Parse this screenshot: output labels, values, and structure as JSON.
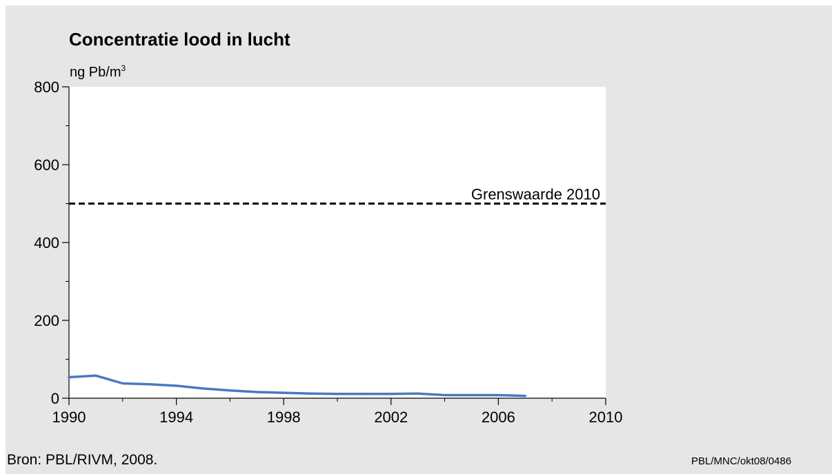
{
  "colors": {
    "panel_bg": "#e6e6e6",
    "plot_bg": "#ffffff",
    "series": "#4a78c4",
    "reference_line": "#000000"
  },
  "chart_data": {
    "type": "line",
    "title": "Concentratie lood in lucht",
    "ylabel": "ng Pb/m",
    "ylabel_superscript": "3",
    "xlabel": "",
    "xlim": [
      1990,
      2010
    ],
    "ylim": [
      0,
      800
    ],
    "x_ticks": [
      "1990",
      "1994",
      "1998",
      "2002",
      "2006",
      "2010"
    ],
    "y_ticks": [
      "0",
      "200",
      "400",
      "600",
      "800"
    ],
    "grid": false,
    "series": [
      {
        "x": [
          1990,
          1991,
          1992,
          1993,
          1994,
          1995,
          1996,
          1997,
          1998,
          1999,
          2000,
          2001,
          2002,
          2003,
          2004,
          2005,
          2006,
          2007
        ],
        "values": [
          54,
          58,
          38,
          36,
          32,
          25,
          20,
          16,
          14,
          12,
          11,
          11,
          11,
          12,
          8,
          8,
          8,
          6
        ]
      }
    ],
    "reference_line": {
      "y": 500,
      "label": "Grenswaarde 2010",
      "style": "dashed"
    }
  },
  "footer": {
    "source": "Bron: PBL/RIVM, 2008.",
    "code": "PBL/MNC/okt08/0486"
  }
}
